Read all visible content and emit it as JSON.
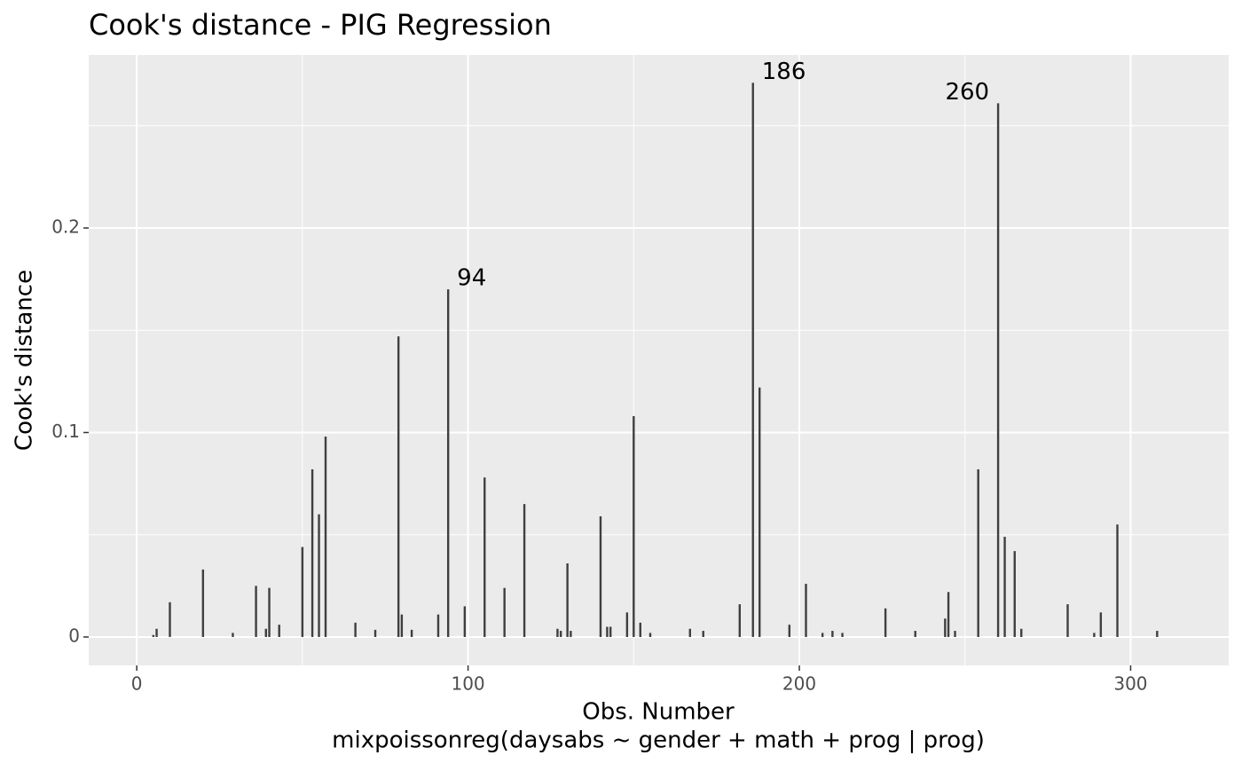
{
  "chart_data": {
    "type": "bar",
    "title": "Cook's distance - PIG Regression",
    "xlabel": "Obs. Number",
    "xlabel_model": "mixpoissonreg(daysabs ~ gender + math + prog | prog)",
    "ylabel": "Cook's distance",
    "x": [
      5,
      6,
      10,
      20,
      29,
      36,
      39,
      40,
      43,
      50,
      53,
      55,
      57,
      66,
      72,
      79,
      80,
      83,
      91,
      94,
      99,
      105,
      111,
      117,
      127,
      128,
      130,
      131,
      140,
      142,
      143,
      148,
      150,
      152,
      155,
      167,
      171,
      182,
      186,
      188,
      197,
      202,
      207,
      210,
      213,
      226,
      235,
      244,
      245,
      247,
      254,
      260,
      262,
      265,
      267,
      281,
      289,
      291,
      296,
      308
    ],
    "values": [
      0.001,
      0.004,
      0.017,
      0.033,
      0.002,
      0.025,
      0.004,
      0.024,
      0.006,
      0.044,
      0.082,
      0.06,
      0.098,
      0.007,
      0.0035,
      0.147,
      0.011,
      0.0035,
      0.011,
      0.17,
      0.015,
      0.078,
      0.024,
      0.065,
      0.004,
      0.003,
      0.036,
      0.003,
      0.059,
      0.005,
      0.005,
      0.012,
      0.108,
      0.007,
      0.002,
      0.004,
      0.003,
      0.016,
      0.271,
      0.122,
      0.006,
      0.026,
      0.002,
      0.003,
      0.002,
      0.014,
      0.003,
      0.009,
      0.022,
      0.003,
      0.082,
      0.261,
      0.049,
      0.042,
      0.004,
      0.016,
      0.002,
      0.012,
      0.055,
      0.003
    ],
    "color": "#3f3f3f",
    "labeled_obs": [
      94,
      186,
      260
    ],
    "xlim": [
      -14.5,
      329.6
    ],
    "xticks": [
      0,
      100,
      200,
      300
    ],
    "xminor": [
      50,
      150,
      250
    ],
    "ylim": [
      -0.0139,
      0.2846
    ],
    "yticks": [
      0.0,
      0.1,
      0.2
    ],
    "yminor": [
      0.05,
      0.15,
      0.25
    ],
    "grid": true
  }
}
